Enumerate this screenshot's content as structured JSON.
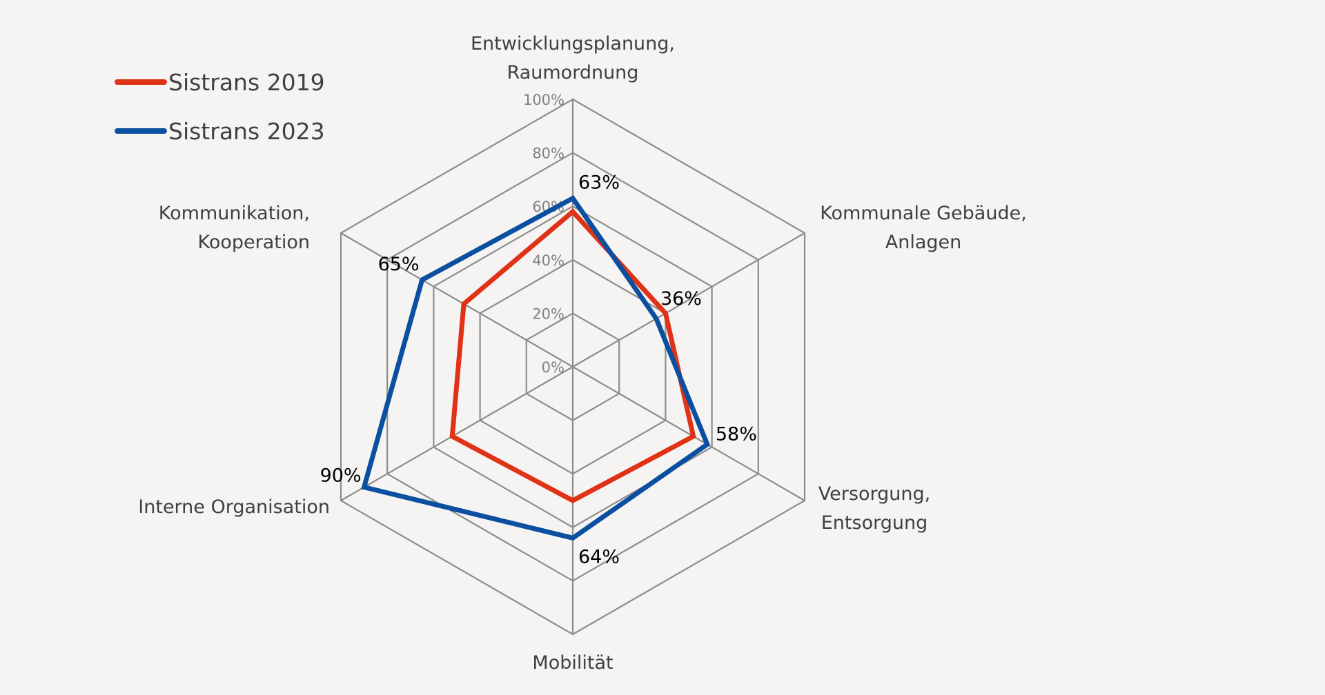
{
  "chart_data": {
    "type": "radar",
    "title": "",
    "categories": [
      "Entwicklungsplanung, Raumordnung",
      "Kommunale Gebäude, Anlagen",
      "Versorgung, Entsorgung",
      "Mobilität",
      "Interne Organisation",
      "Kommunikation, Kooperation"
    ],
    "category_lines": [
      [
        "Entwicklungsplanung,",
        "Raumordnung"
      ],
      [
        "Kommunale Gebäude,",
        "Anlagen"
      ],
      [
        "Versorgung,",
        "Entsorgung"
      ],
      [
        "Mobilität"
      ],
      [
        "Interne Organisation"
      ],
      [
        "Kommunikation,",
        "Kooperation"
      ]
    ],
    "rlim": [
      0,
      100
    ],
    "ticks": [
      0,
      20,
      40,
      60,
      80,
      100
    ],
    "tick_labels": [
      "0%",
      "20%",
      "40%",
      "60%",
      "80%",
      "100%"
    ],
    "grid": true,
    "legend_position": "top-left",
    "series": [
      {
        "name": "Sistrans 2019",
        "color": "#E03216",
        "values": [
          58,
          40,
          52,
          50,
          52,
          47
        ],
        "data_labels": null
      },
      {
        "name": "Sistrans 2023",
        "color": "#0B4FA0",
        "values": [
          63,
          36,
          58,
          64,
          90,
          65
        ],
        "data_labels": [
          "63%",
          "36%",
          "58%",
          "64%",
          "90%",
          "65%"
        ]
      }
    ]
  }
}
